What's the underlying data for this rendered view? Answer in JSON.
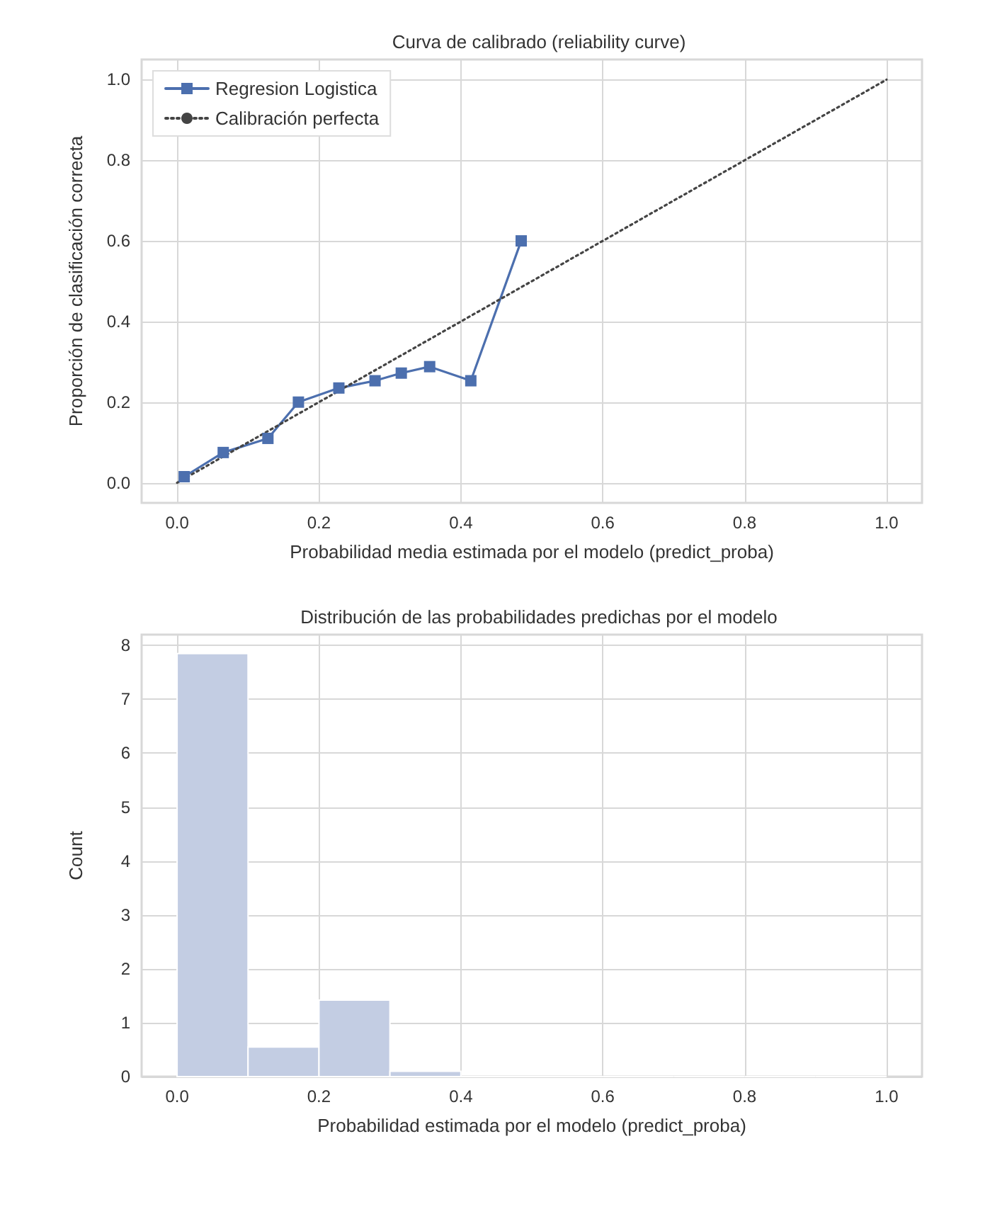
{
  "chart_data": [
    {
      "type": "line",
      "title": "Curva de calibrado (reliability curve)",
      "xlabel": "Probabilidad media estimada por el modelo (predict_proba)",
      "ylabel": "Proporción de clasificación correcta",
      "xlim": [
        -0.05,
        1.05
      ],
      "ylim": [
        -0.05,
        1.05
      ],
      "xticks": [
        {
          "value": 0,
          "label": "0.0"
        },
        {
          "value": 0.2,
          "label": "0.2"
        },
        {
          "value": 0.4,
          "label": "0.4"
        },
        {
          "value": 0.6,
          "label": "0.6"
        },
        {
          "value": 0.8,
          "label": "0.8"
        },
        {
          "value": 1,
          "label": "1.0"
        }
      ],
      "yticks": [
        {
          "value": 0,
          "label": "0.0"
        },
        {
          "value": 0.2,
          "label": "0.2"
        },
        {
          "value": 0.4,
          "label": "0.4"
        },
        {
          "value": 0.6,
          "label": "0.6"
        },
        {
          "value": 0.8,
          "label": "0.8"
        },
        {
          "value": 1,
          "label": "1.0"
        }
      ],
      "grid": true,
      "legend": "top left",
      "series": [
        {
          "name": "Regresion Logistica",
          "color": "#4c6fae",
          "marker": "square",
          "line_style": "solid",
          "x": [
            0.01,
            0.065,
            0.128,
            0.171,
            0.228,
            0.279,
            0.316,
            0.356,
            0.414,
            0.485
          ],
          "values": [
            0.015,
            0.075,
            0.11,
            0.2,
            0.235,
            0.253,
            0.272,
            0.288,
            0.253,
            0.6
          ]
        },
        {
          "name": "Calibración perfecta",
          "color": "#444444",
          "marker": "none",
          "line_style": "dotted",
          "x": [
            0,
            1
          ],
          "values": [
            0,
            1
          ]
        }
      ]
    },
    {
      "type": "histogram",
      "title": "Distribución de las probabilidades predichas por el modelo",
      "xlabel": "Probabilidad estimada por el modelo (predict_proba)",
      "ylabel": "Count",
      "xlim": [
        -0.05,
        1.05
      ],
      "ylim": [
        0,
        8.2
      ],
      "xticks": [
        {
          "value": 0,
          "label": "0.0"
        },
        {
          "value": 0.2,
          "label": "0.2"
        },
        {
          "value": 0.4,
          "label": "0.4"
        },
        {
          "value": 0.6,
          "label": "0.6"
        },
        {
          "value": 0.8,
          "label": "0.8"
        },
        {
          "value": 1,
          "label": "1.0"
        }
      ],
      "yticks": [
        0,
        1,
        2,
        3,
        4,
        5,
        6,
        7,
        8
      ],
      "grid": true,
      "color": "#c3cde3",
      "bins": [
        0,
        0.1,
        0.2,
        0.3,
        0.4,
        0.5,
        0.6,
        0.7,
        0.8,
        0.9,
        1.0
      ],
      "values": [
        7.85,
        0.55,
        1.42,
        0.1,
        0,
        0,
        0,
        0,
        0,
        0
      ]
    }
  ]
}
